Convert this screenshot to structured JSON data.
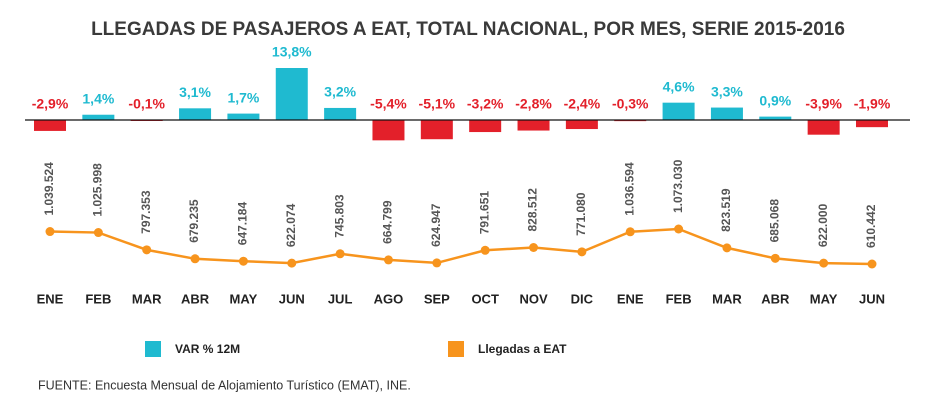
{
  "chart_data": {
    "type": "combo",
    "title": "LLEGADAS DE PASAJEROS A EAT, TOTAL NACIONAL, POR MES, SERIE 2015-2016",
    "categories": [
      "ENE",
      "FEB",
      "MAR",
      "ABR",
      "MAY",
      "JUN",
      "JUL",
      "AGO",
      "SEP",
      "OCT",
      "NOV",
      "DIC",
      "ENE",
      "FEB",
      "MAR",
      "ABR",
      "MAY",
      "JUN"
    ],
    "series": [
      {
        "name": "VAR % 12M",
        "type": "bar",
        "color": "#1fbad0",
        "negative_color": "#e3202a",
        "values": [
          -2.9,
          1.4,
          -0.1,
          3.1,
          1.7,
          13.8,
          3.2,
          -5.4,
          -5.1,
          -3.2,
          -2.8,
          -2.4,
          -0.3,
          4.6,
          3.3,
          0.9,
          -3.9,
          -1.9
        ],
        "value_labels": [
          "-2,9%",
          "1,4%",
          "-0,1%",
          "3,1%",
          "1,7%",
          "13,8%",
          "3,2%",
          "-5,4%",
          "-5,1%",
          "-3,2%",
          "-2,8%",
          "-2,4%",
          "-0,3%",
          "4,6%",
          "3,3%",
          "0,9%",
          "-3,9%",
          "-1,9%"
        ]
      },
      {
        "name": "Llegadas a EAT",
        "type": "line",
        "color": "#f7941d",
        "values": [
          1039524,
          1025998,
          797353,
          679235,
          647184,
          622074,
          745803,
          664799,
          624947,
          791651,
          828512,
          771080,
          1036594,
          1073030,
          823519,
          685068,
          622000,
          610442
        ],
        "value_labels": [
          "1.039.524",
          "1.025.998",
          "797.353",
          "679.235",
          "647.184",
          "622.074",
          "745.803",
          "664.799",
          "624.947",
          "791.651",
          "828.512",
          "771.080",
          "1.036.594",
          "1.073.030",
          "823.519",
          "685.068",
          "622.000",
          "610.442"
        ]
      }
    ],
    "source": "FUENTE: Encuesta Mensual de Alojamiento Turístico (EMAT), INE."
  }
}
